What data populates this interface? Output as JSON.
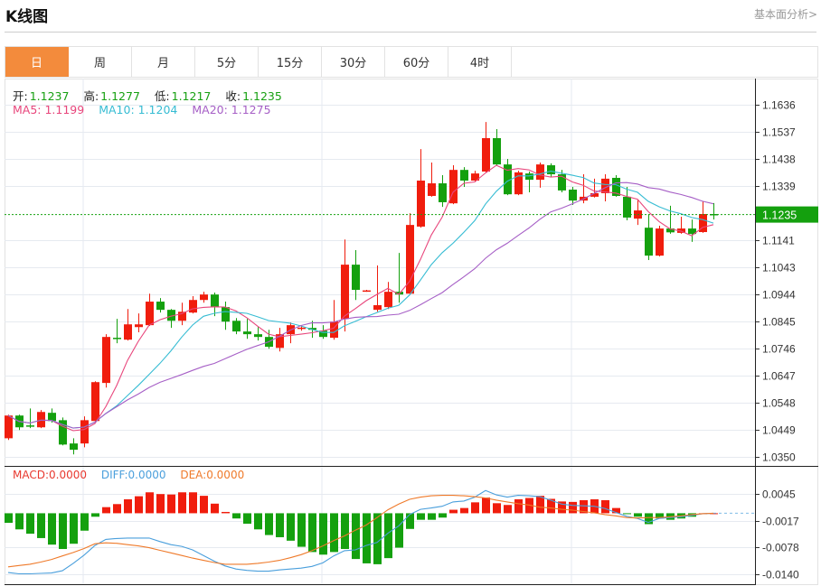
{
  "header": {
    "title": "K线图",
    "link": "基本面分析>"
  },
  "tabs": [
    {
      "label": "日",
      "active": true
    },
    {
      "label": "周"
    },
    {
      "label": "月"
    },
    {
      "label": "5分"
    },
    {
      "label": "15分"
    },
    {
      "label": "30分"
    },
    {
      "label": "60分"
    },
    {
      "label": "4时"
    }
  ],
  "info": {
    "open_label": "开:",
    "open": "1.1237",
    "high_label": "高:",
    "high": "1.1277",
    "low_label": "低:",
    "low": "1.1217",
    "close_label": "收:",
    "close": "1.1235",
    "ma5": "MA5: 1.1199",
    "ma10": "MA10: 1.1204",
    "ma20": "MA20: 1.1275"
  },
  "macd_info": {
    "macd": "MACD:0.0000",
    "diff": "DIFF:0.0000",
    "dea": "DEA:0.0000"
  },
  "current_price": "1.1235",
  "colors": {
    "up": "#f01d0d",
    "down": "#14a00e",
    "ma5": "#e8467c",
    "ma10": "#36bcd3",
    "ma20": "#a65fc6",
    "diff": "#4a9fdc",
    "dea": "#ef7a2a",
    "active_tab": "#f38b3c",
    "price_tag": "#14a00e"
  },
  "chart_data": [
    {
      "type": "candlestick",
      "ylim": [
        1.035,
        1.1636
      ],
      "yticks": [
        "1.1636",
        "1.1537",
        "1.1438",
        "1.1339",
        "1.1141",
        "1.1043",
        "1.0944",
        "1.0845",
        "1.0746",
        "1.0647",
        "1.0548",
        "1.0449",
        "1.0350"
      ],
      "grid": true,
      "ohlc": [
        [
          1.0418,
          1.0504,
          1.0412,
          1.0501
        ],
        [
          1.0501,
          1.0504,
          1.0448,
          1.0458
        ],
        [
          1.0465,
          1.0527,
          1.0455,
          1.0462
        ],
        [
          1.0458,
          1.0521,
          1.0455,
          1.0514
        ],
        [
          1.0511,
          1.0527,
          1.0475,
          1.0481
        ],
        [
          1.0484,
          1.0494,
          1.0392,
          1.0395
        ],
        [
          1.0399,
          1.0418,
          1.0359,
          1.0376
        ],
        [
          1.0399,
          1.0498,
          1.0385,
          1.0484
        ],
        [
          1.0481,
          1.0626,
          1.0475,
          1.0623
        ],
        [
          1.062,
          1.0798,
          1.0603,
          1.0788
        ],
        [
          1.0785,
          1.0854,
          1.0765,
          1.0782
        ],
        [
          1.0778,
          1.089,
          1.0775,
          1.0834
        ],
        [
          1.0824,
          1.0874,
          1.0805,
          1.0834
        ],
        [
          1.0831,
          1.0946,
          1.0828,
          1.0917
        ],
        [
          1.0917,
          1.093,
          1.0877,
          1.0887
        ],
        [
          1.0887,
          1.089,
          1.0821,
          1.0847
        ],
        [
          1.0847,
          1.0913,
          1.0831,
          1.088
        ],
        [
          1.0877,
          1.0937,
          1.0874,
          1.0923
        ],
        [
          1.0923,
          1.0953,
          1.0913,
          1.0943
        ],
        [
          1.0943,
          1.095,
          1.0864,
          1.0897
        ],
        [
          1.0897,
          1.0917,
          1.0814,
          1.0844
        ],
        [
          1.0847,
          1.0857,
          1.0798,
          1.0808
        ],
        [
          1.0808,
          1.0854,
          1.0781,
          1.0798
        ],
        [
          1.0798,
          1.0824,
          1.0775,
          1.0788
        ],
        [
          1.0788,
          1.0814,
          1.0745,
          1.0752
        ],
        [
          1.0748,
          1.0821,
          1.0735,
          1.0798
        ],
        [
          1.0798,
          1.0841,
          1.0765,
          1.0831
        ],
        [
          1.0821,
          1.0831,
          1.0811,
          1.0822
        ],
        [
          1.0821,
          1.0847,
          1.0785,
          1.0814
        ],
        [
          1.0811,
          1.0831,
          1.0781,
          1.0788
        ],
        [
          1.0785,
          1.0923,
          1.0778,
          1.0844
        ],
        [
          1.0854,
          1.1144,
          1.0808,
          1.1052
        ],
        [
          1.1052,
          1.1105,
          1.0923,
          1.096
        ],
        [
          1.0956,
          1.096,
          1.0953,
          1.0958
        ],
        [
          1.0887,
          1.1049,
          1.088,
          1.0904
        ],
        [
          1.0897,
          1.0989,
          1.089,
          1.0953
        ],
        [
          1.0953,
          1.1095,
          1.0913,
          1.0943
        ],
        [
          1.0946,
          1.124,
          1.0943,
          1.1197
        ],
        [
          1.1191,
          1.1474,
          1.1187,
          1.1359
        ],
        [
          1.1303,
          1.1425,
          1.13,
          1.1349
        ],
        [
          1.1349,
          1.1379,
          1.1263,
          1.128
        ],
        [
          1.1276,
          1.1415,
          1.1273,
          1.1398
        ],
        [
          1.1398,
          1.1408,
          1.1336,
          1.1359
        ],
        [
          1.1359,
          1.1395,
          1.1356,
          1.1385
        ],
        [
          1.1392,
          1.1573,
          1.1389,
          1.1514
        ],
        [
          1.1514,
          1.1547,
          1.1415,
          1.1418
        ],
        [
          1.1418,
          1.1438,
          1.1306,
          1.1309
        ],
        [
          1.1309,
          1.1395,
          1.1306,
          1.1389
        ],
        [
          1.1385,
          1.1392,
          1.1316,
          1.1362
        ],
        [
          1.1362,
          1.1425,
          1.1333,
          1.1418
        ],
        [
          1.1415,
          1.1422,
          1.1372,
          1.1382
        ],
        [
          1.1382,
          1.1398,
          1.1316,
          1.1323
        ],
        [
          1.1326,
          1.1336,
          1.127,
          1.1286
        ],
        [
          1.1286,
          1.1382,
          1.1276,
          1.13
        ],
        [
          1.13,
          1.1366,
          1.1297,
          1.1313
        ],
        [
          1.1313,
          1.1382,
          1.1283,
          1.1366
        ],
        [
          1.1369,
          1.1379,
          1.13,
          1.1303
        ],
        [
          1.13,
          1.1336,
          1.1214,
          1.1224
        ],
        [
          1.122,
          1.129,
          1.1197,
          1.125
        ],
        [
          1.1187,
          1.1237,
          1.1069,
          1.1085
        ],
        [
          1.1085,
          1.1194,
          1.1082,
          1.1184
        ],
        [
          1.1184,
          1.1267,
          1.1165,
          1.117
        ],
        [
          1.1168,
          1.1227,
          1.1165,
          1.1184
        ],
        [
          1.1184,
          1.1217,
          1.1135,
          1.1164
        ],
        [
          1.1171,
          1.1283,
          1.1168,
          1.1237
        ],
        [
          1.1237,
          1.1277,
          1.1217,
          1.1235
        ]
      ],
      "moving_averages": [
        "MA5",
        "MA10",
        "MA20"
      ]
    },
    {
      "type": "bar+line",
      "ylim": [
        -0.014,
        0.0045
      ],
      "yticks": [
        "0.0045",
        "-0.0017",
        "-0.0078",
        "-0.0140"
      ],
      "macd": [
        -0.0022,
        -0.0037,
        -0.0047,
        -0.0057,
        -0.0072,
        -0.0082,
        -0.007,
        -0.004,
        -0.0008,
        0.0014,
        0.0021,
        0.0032,
        0.0039,
        0.0048,
        0.0044,
        0.0043,
        0.0048,
        0.0048,
        0.004,
        0.0022,
        0.0003,
        -0.0012,
        -0.0024,
        -0.0037,
        -0.005,
        -0.0055,
        -0.0063,
        -0.0077,
        -0.0089,
        -0.0095,
        -0.0089,
        -0.0082,
        -0.0105,
        -0.0115,
        -0.0117,
        -0.0103,
        -0.0079,
        -0.0036,
        -0.0015,
        -0.0015,
        -0.001,
        0.0008,
        0.0012,
        0.0025,
        0.0036,
        0.0023,
        0.0019,
        0.0032,
        0.0035,
        0.004,
        0.0033,
        0.0027,
        0.0026,
        0.003,
        0.0032,
        0.003,
        0.0012,
        -0.0002,
        -0.0008,
        -0.0025,
        -0.0012,
        -0.0015,
        -0.0012,
        -0.0008,
        0.0,
        0.0
      ],
      "diff": [
        -0.0136,
        -0.0139,
        -0.0139,
        -0.0138,
        -0.0137,
        -0.0132,
        -0.0115,
        -0.0096,
        -0.0074,
        -0.006,
        -0.0058,
        -0.0057,
        -0.0057,
        -0.0057,
        -0.0065,
        -0.0072,
        -0.0076,
        -0.0084,
        -0.0097,
        -0.011,
        -0.0121,
        -0.0128,
        -0.0131,
        -0.0133,
        -0.0133,
        -0.013,
        -0.0128,
        -0.0126,
        -0.0122,
        -0.0114,
        -0.0098,
        -0.0086,
        -0.0084,
        -0.0074,
        -0.0067,
        -0.0046,
        -0.0029,
        -0.0003,
        0.0009,
        0.0012,
        0.0016,
        0.0026,
        0.0028,
        0.0037,
        0.0052,
        0.0042,
        0.0037,
        0.0041,
        0.004,
        0.0038,
        0.003,
        0.0021,
        0.0018,
        0.0017,
        0.0016,
        0.0011,
        0.0002,
        -0.0007,
        -0.0012,
        -0.0021,
        -0.0012,
        -0.001,
        -0.0008,
        -0.0005,
        -0.0001,
        0.0
      ],
      "dea": [
        -0.0123,
        -0.012,
        -0.0117,
        -0.0112,
        -0.0106,
        -0.0098,
        -0.009,
        -0.0081,
        -0.007,
        -0.0068,
        -0.0069,
        -0.0072,
        -0.0075,
        -0.0079,
        -0.0085,
        -0.0091,
        -0.0097,
        -0.0103,
        -0.0108,
        -0.0113,
        -0.0117,
        -0.0117,
        -0.0117,
        -0.0115,
        -0.0112,
        -0.0108,
        -0.0102,
        -0.0095,
        -0.0086,
        -0.0075,
        -0.0063,
        -0.0052,
        -0.0039,
        -0.0027,
        -0.001,
        0.0008,
        0.0021,
        0.0032,
        0.0037,
        0.004,
        0.0041,
        0.0041,
        0.004,
        0.0038,
        0.0035,
        0.003,
        0.0026,
        0.0022,
        0.0019,
        0.0014,
        0.0012,
        0.0009,
        0.0007,
        0.0004,
        0.0001,
        -0.0003,
        -0.0006,
        -0.001,
        -0.0011,
        -0.001,
        -0.001,
        -0.0008,
        -0.0006,
        -0.0003,
        -0.0001,
        0.0
      ]
    }
  ]
}
